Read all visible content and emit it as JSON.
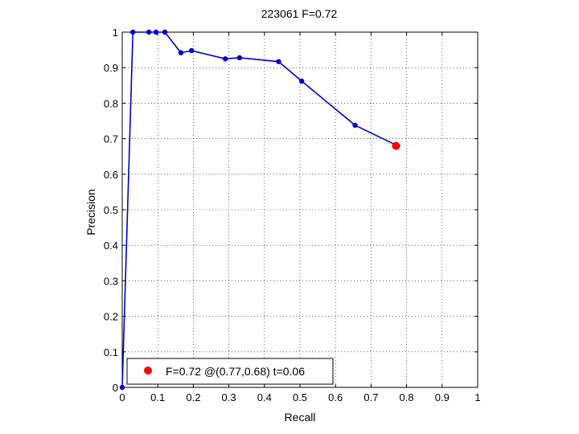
{
  "chart_data": {
    "type": "line",
    "title": "223061 F=0.72",
    "xlabel": "Recall",
    "ylabel": "Precision",
    "xlim": [
      0,
      1
    ],
    "ylim": [
      0,
      1
    ],
    "xticks": [
      0,
      0.1,
      0.2,
      0.3,
      0.4,
      0.5,
      0.6,
      0.7,
      0.8,
      0.9,
      1
    ],
    "yticks": [
      0,
      0.1,
      0.2,
      0.3,
      0.4,
      0.5,
      0.6,
      0.7,
      0.8,
      0.9,
      1
    ],
    "xtick_labels": [
      "0",
      "0.1",
      "0.2",
      "0.3",
      "0.4",
      "0.5",
      "0.6",
      "0.7",
      "0.8",
      "0.9",
      "1"
    ],
    "ytick_labels": [
      "0",
      "0.1",
      "0.2",
      "0.3",
      "0.4",
      "0.5",
      "0.6",
      "0.7",
      "0.8",
      "0.9",
      "1"
    ],
    "grid": true,
    "series": [
      {
        "color": "#0000cc",
        "x": [
          0,
          0.03,
          0.075,
          0.095,
          0.12,
          0.165,
          0.195,
          0.29,
          0.33,
          0.44,
          0.505,
          0.655,
          0.775
        ],
        "y": [
          0,
          1.0,
          1.0,
          1.0,
          1.0,
          0.942,
          0.948,
          0.925,
          0.928,
          0.917,
          0.862,
          0.738,
          0.68
        ]
      }
    ],
    "highlight": {
      "x": 0.77,
      "y": 0.68,
      "color": "#ff0000"
    },
    "legend": {
      "placement": "bottom-left",
      "entries": [
        {
          "label": "F=0.72 @(0.77,0.68) t=0.06",
          "color": "#ff0000"
        }
      ]
    }
  }
}
